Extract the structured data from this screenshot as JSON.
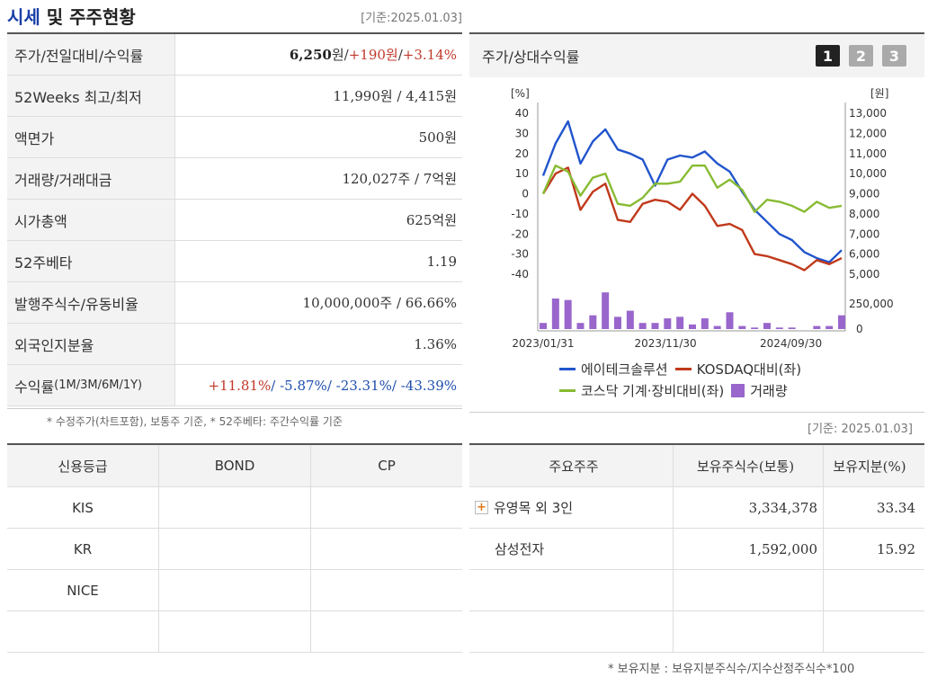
{
  "header": {
    "title_accent": "시세",
    "title_rest": " 및 주주현황",
    "base_date": "[기준:2025.01.03]"
  },
  "summary": [
    {
      "label": "주가/전일대비/수익률",
      "value_main": "6,250",
      "value_unit": "원",
      "sep1": " / ",
      "change": "+190원",
      "sep2": " / ",
      "rate": "+3.14%"
    },
    {
      "label": "52Weeks 최고/최저",
      "value": "11,990원 / 4,415원"
    },
    {
      "label": "액면가",
      "value": "500원"
    },
    {
      "label": "거래량/거래대금",
      "value": "120,027주 / 7억원"
    },
    {
      "label": "시가총액",
      "value": "625억원"
    },
    {
      "label": "52주베타",
      "value": "1.19"
    },
    {
      "label": "발행주식수/유동비율",
      "value": "10,000,000주 / 66.66%"
    },
    {
      "label": "외국인지분율",
      "value": "1.36%"
    },
    {
      "label_main": "수익률 ",
      "label_small": "(1M/3M/6M/1Y)",
      "r1": "+11.81%",
      "r2": "/ -5.87%",
      "r3": "/ -23.31%",
      "r4": "/ -43.39%"
    }
  ],
  "summary_note": "* 수정주가(차트포함), 보통주 기준, * 52주베타: 주간수익률 기준",
  "credit": {
    "headers": [
      "신용등급",
      "BOND",
      "CP"
    ],
    "rows": [
      [
        "KIS",
        "",
        ""
      ],
      [
        "KR",
        "",
        ""
      ],
      [
        "NICE",
        "",
        ""
      ],
      [
        "",
        "",
        ""
      ]
    ]
  },
  "chart_panel": {
    "title": "주가/상대수익률",
    "buttons": [
      "1",
      "2",
      "3"
    ],
    "active_button": "1"
  },
  "chart_data": {
    "type": "line",
    "x_ticks": [
      "2023/01/31",
      "2023/11/30",
      "2024/09/30"
    ],
    "left_axis_label": "[%]",
    "right_axis_label": "[원]",
    "left_ticks": [
      40,
      30,
      20,
      10,
      0,
      -10,
      -20,
      -30,
      -40
    ],
    "right_ticks": [
      "13,000",
      "12,000",
      "11,000",
      "10,000",
      "9,000",
      "8,000",
      "7,000",
      "6,000",
      "5,000"
    ],
    "volume_ticks": [
      "250,000",
      "0"
    ],
    "ylim": [
      -40,
      40
    ],
    "series": [
      {
        "name": "에이테크솔루션",
        "color": "#2255cc",
        "values": [
          9,
          25,
          36,
          15,
          26,
          32,
          22,
          20,
          17,
          4,
          17,
          19,
          18,
          21,
          15,
          11,
          1,
          -8,
          -14,
          -20,
          -23,
          -29,
          -32,
          -34,
          -28
        ]
      },
      {
        "name": "KOSDAQ대비(좌)",
        "color": "#c0391b",
        "values": [
          0,
          10,
          13,
          -8,
          1,
          5,
          -13,
          -14,
          -5,
          -3,
          -4,
          -8,
          0,
          -6,
          -16,
          -15,
          -18,
          -30,
          -31,
          -33,
          -35,
          -38,
          -33,
          -35,
          -32
        ]
      },
      {
        "name": "코스닥 기계·장비대비(좌)",
        "color": "#88bb33",
        "values": [
          0,
          14,
          11,
          -1,
          8,
          10,
          -5,
          -6,
          -2,
          5,
          5,
          6,
          14,
          14,
          3,
          7,
          2,
          -9,
          -3,
          -4,
          -6,
          -9,
          -4,
          -7,
          -6
        ]
      }
    ],
    "volume": {
      "name": "거래량",
      "color": "#9966cc",
      "values": [
        0.2,
        1.0,
        0.95,
        0.2,
        0.45,
        1.2,
        0.4,
        0.6,
        0.2,
        0.2,
        0.35,
        0.4,
        0.15,
        0.35,
        0.1,
        0.55,
        0.1,
        0.05,
        0.2,
        0.05,
        0.05,
        0.0,
        0.1,
        0.1,
        0.45
      ]
    }
  },
  "holders_base_date": "[기준: 2025.01.03]",
  "holders": {
    "headers": [
      "주요주주",
      "보유주식수(보통)",
      "보유지분(%)"
    ],
    "rows": [
      {
        "name": "유영목 외 3인",
        "shares": "3,334,378",
        "pct": "33.34",
        "expand": "+"
      },
      {
        "name": "삼성전자",
        "shares": "1,592,000",
        "pct": "15.92"
      },
      {
        "name": "",
        "shares": "",
        "pct": ""
      },
      {
        "name": "",
        "shares": "",
        "pct": ""
      }
    ]
  },
  "holders_note": "* 보유지분 : 보유지분주식수/지수산정주식수*100"
}
